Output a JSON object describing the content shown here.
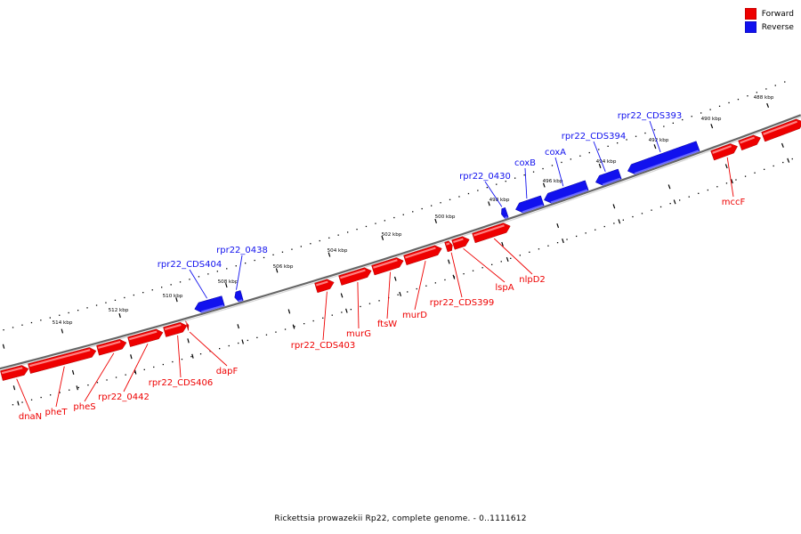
{
  "colors": {
    "forward": "#ee0000",
    "reverse": "#1111ee",
    "backbone": "#888888",
    "tick": "#000000"
  },
  "legend": [
    {
      "label": "Forward",
      "color": "#ee0000"
    },
    {
      "label": "Reverse",
      "color": "#1111ee"
    }
  ],
  "caption": "Rickettsia prowazekii Rp22, complete genome. - 0..1111612",
  "scale_labels": [
    "488 kbp",
    "490 kbp",
    "492 kbp",
    "494 kbp",
    "496 kbp",
    "498 kbp",
    "500 kbp",
    "502 kbp",
    "504 kbp",
    "506 kbp",
    "508 kbp",
    "510 kbp",
    "512 kbp",
    "514 kbp"
  ],
  "genes": [
    {
      "name": "dnaN",
      "strand": "forward"
    },
    {
      "name": "pheT",
      "strand": "forward"
    },
    {
      "name": "pheS",
      "strand": "forward"
    },
    {
      "name": "rpr22_0442",
      "strand": "forward"
    },
    {
      "name": "rpr22_CDS406",
      "strand": "forward"
    },
    {
      "name": "dapF",
      "strand": "forward"
    },
    {
      "name": "rpr22_CDS404",
      "strand": "reverse"
    },
    {
      "name": "rpr22_0438",
      "strand": "reverse"
    },
    {
      "name": "rpr22_CDS403",
      "strand": "forward"
    },
    {
      "name": "murG",
      "strand": "forward"
    },
    {
      "name": "ftsW",
      "strand": "forward"
    },
    {
      "name": "murD",
      "strand": "forward"
    },
    {
      "name": "rpr22_CDS399",
      "strand": "forward"
    },
    {
      "name": "lspA",
      "strand": "forward"
    },
    {
      "name": "nlpD2",
      "strand": "forward"
    },
    {
      "name": "rpr22_0430",
      "strand": "reverse"
    },
    {
      "name": "coxB",
      "strand": "reverse"
    },
    {
      "name": "coxA",
      "strand": "reverse"
    },
    {
      "name": "rpr22_CDS394",
      "strand": "reverse"
    },
    {
      "name": "rpr22_CDS393",
      "strand": "reverse"
    },
    {
      "name": "mccF",
      "strand": "forward"
    }
  ],
  "unlabeled_features": [
    {
      "strand": "forward"
    },
    {
      "strand": "forward"
    }
  ]
}
